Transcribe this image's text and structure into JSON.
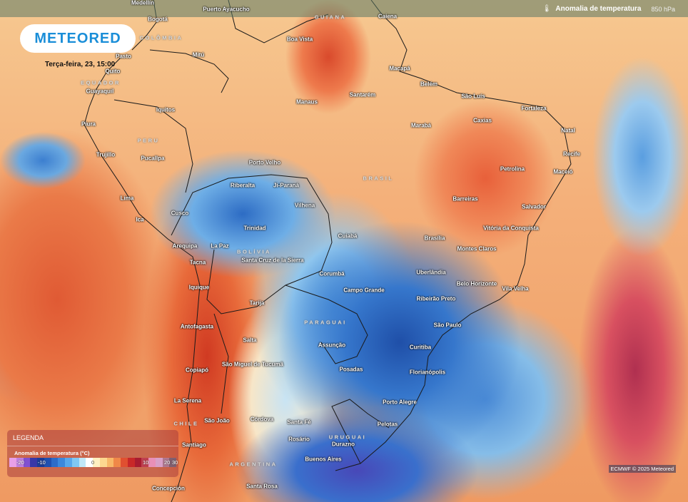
{
  "header": {
    "layer_icon": "thermometer-icon",
    "layer_name": "Anomalia de temperatura",
    "level": "850 hPa"
  },
  "brand": {
    "logo": "METEORED",
    "datetime": "Terça-feira, 23, 15:00"
  },
  "legend": {
    "title": "LEGENDA",
    "subtitle": "Anomalia de temperatura (°C)",
    "ticks": [
      "-20",
      "-10",
      "0",
      "10",
      "20",
      "30"
    ],
    "colors": [
      "#e8a0e8",
      "#c080e0",
      "#8050d0",
      "#3838a8",
      "#1c3c98",
      "#2050b0",
      "#2c6cc8",
      "#3c88dc",
      "#58a8ec",
      "#80c8f4",
      "#c0e8f8",
      "#ffffff",
      "#fff0c0",
      "#fcd890",
      "#f8b868",
      "#f08848",
      "#e05030",
      "#c82828",
      "#a81c30",
      "#c04050",
      "#e890b8",
      "#d8a0c8",
      "#b07890",
      "#806070"
    ]
  },
  "countries": [
    "COLÔMBIA",
    "EQUADOR",
    "GUIANA",
    "PERU",
    "BRASIL",
    "BOLÍVIA",
    "PARAGUAI",
    "CHILE",
    "URUGUAI",
    "ARGENTINA"
  ],
  "cities": [
    "Medellín",
    "Puerto Ayacucho",
    "Bogotá",
    "Pasto",
    "Mitú",
    "Quito",
    "Guayaquil",
    "Boa Vista",
    "Caiena",
    "Macapá",
    "Belém",
    "São Luís",
    "Fortaleza",
    "Santarém",
    "Manaus",
    "Iquitos",
    "Caxias",
    "Piura",
    "Natal",
    "Marabá",
    "Trujillo",
    "Recife",
    "Pucallpa",
    "Porto Velho",
    "Petrolina",
    "Maceió",
    "Riberalta",
    "Ji-Paraná",
    "Vilhena",
    "Lima",
    "Barreiras",
    "Salvador",
    "Cusco",
    "Ica",
    "Trinidad",
    "Cuiabá",
    "Vitória da Conquista",
    "Brasília",
    "Arequipa",
    "La Paz",
    "Montes Claros",
    "Santa Cruz de la Sierra",
    "Tacna",
    "Corumbá",
    "Uberlândia",
    "Campo Grande",
    "Belo Horizonte",
    "Iquique",
    "Ribeirão Preto",
    "Vila Velha",
    "Tarija",
    "Antofagasta",
    "São Paulo",
    "Salta",
    "Assunção",
    "Curitiba",
    "São Miguel de Tucumã",
    "Posadas",
    "Florianópolis",
    "Copiapó",
    "La Serena",
    "Porto Alegre",
    "São João",
    "Córdova",
    "Santa Fé",
    "Pelotas",
    "Rosário",
    "Santiago",
    "Durazno",
    "Buenos Aires",
    "Concepción",
    "Santa Rosa"
  ],
  "credit": "ECMWF © 2025 Meteored"
}
